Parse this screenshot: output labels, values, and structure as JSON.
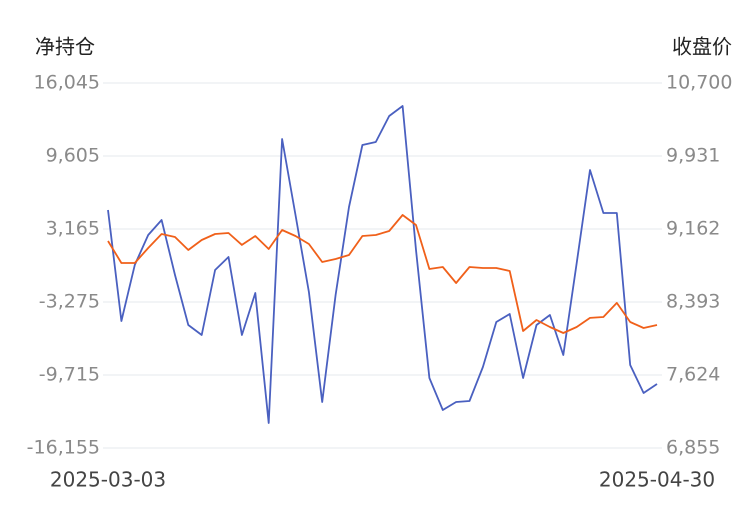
{
  "chart_data": {
    "type": "line",
    "y_label": "净持仓",
    "y2_label": "收盘价",
    "categories": [
      "2025-03-03",
      null,
      null,
      null,
      null,
      null,
      null,
      null,
      null,
      null,
      null,
      null,
      null,
      null,
      null,
      null,
      null,
      null,
      null,
      null,
      null,
      null,
      null,
      null,
      null,
      null,
      null,
      null,
      null,
      null,
      null,
      null,
      null,
      null,
      null,
      null,
      null,
      null,
      null,
      null,
      null,
      "2025-04-30"
    ],
    "series": [
      {
        "color": "#4a60c0",
        "axis": "y",
        "values": [
          4841,
          -4950,
          0,
          2636,
          3959,
          -893,
          -5304,
          -6186,
          -452,
          695,
          -6186,
          -2481,
          -13950,
          11105,
          4400,
          -2393,
          -12097,
          -2658,
          5106,
          10575,
          10840,
          13134,
          14016,
          1312,
          -9980,
          -12803,
          -12097,
          -12009,
          -9009,
          -5040,
          -4334,
          -9980,
          -5304,
          -4422,
          -7951,
          165,
          8370,
          4576,
          4576,
          -8833,
          -11303,
          -10509
        ]
      },
      {
        "color": "#f0601a",
        "axis": "y2",
        "values": [
          9036,
          8804,
          8804,
          8962,
          9109,
          9078,
          8941,
          9046,
          9109,
          9120,
          8994,
          9088,
          8951,
          9151,
          9088,
          9004,
          8814,
          8846,
          8888,
          9088,
          9099,
          9141,
          9310,
          9204,
          8741,
          8762,
          8593,
          8762,
          8751,
          8751,
          8720,
          8088,
          8203,
          8130,
          8066,
          8130,
          8225,
          8235,
          8383,
          8182,
          8119,
          8151
        ]
      }
    ],
    "ylim": [
      -16155,
      16045
    ],
    "yticks": [
      {
        "value": -16155,
        "label": "-16,155"
      },
      {
        "value": -9715,
        "label": "-9,715"
      },
      {
        "value": -3275,
        "label": "-3,275"
      },
      {
        "value": 3165,
        "label": "3,165"
      },
      {
        "value": 9605,
        "label": "9,605"
      },
      {
        "value": 16045,
        "label": "16,045"
      }
    ],
    "y2lim": [
      6855,
      10700
    ],
    "y2ticks": [
      {
        "value": 6855,
        "label": "6,855"
      },
      {
        "value": 7624,
        "label": "7,624"
      },
      {
        "value": 8393,
        "label": "8,393"
      },
      {
        "value": 9162,
        "label": "9,162"
      },
      {
        "value": 9931,
        "label": "9,931"
      },
      {
        "value": 10700,
        "label": "10,700"
      }
    ],
    "grid": true
  }
}
